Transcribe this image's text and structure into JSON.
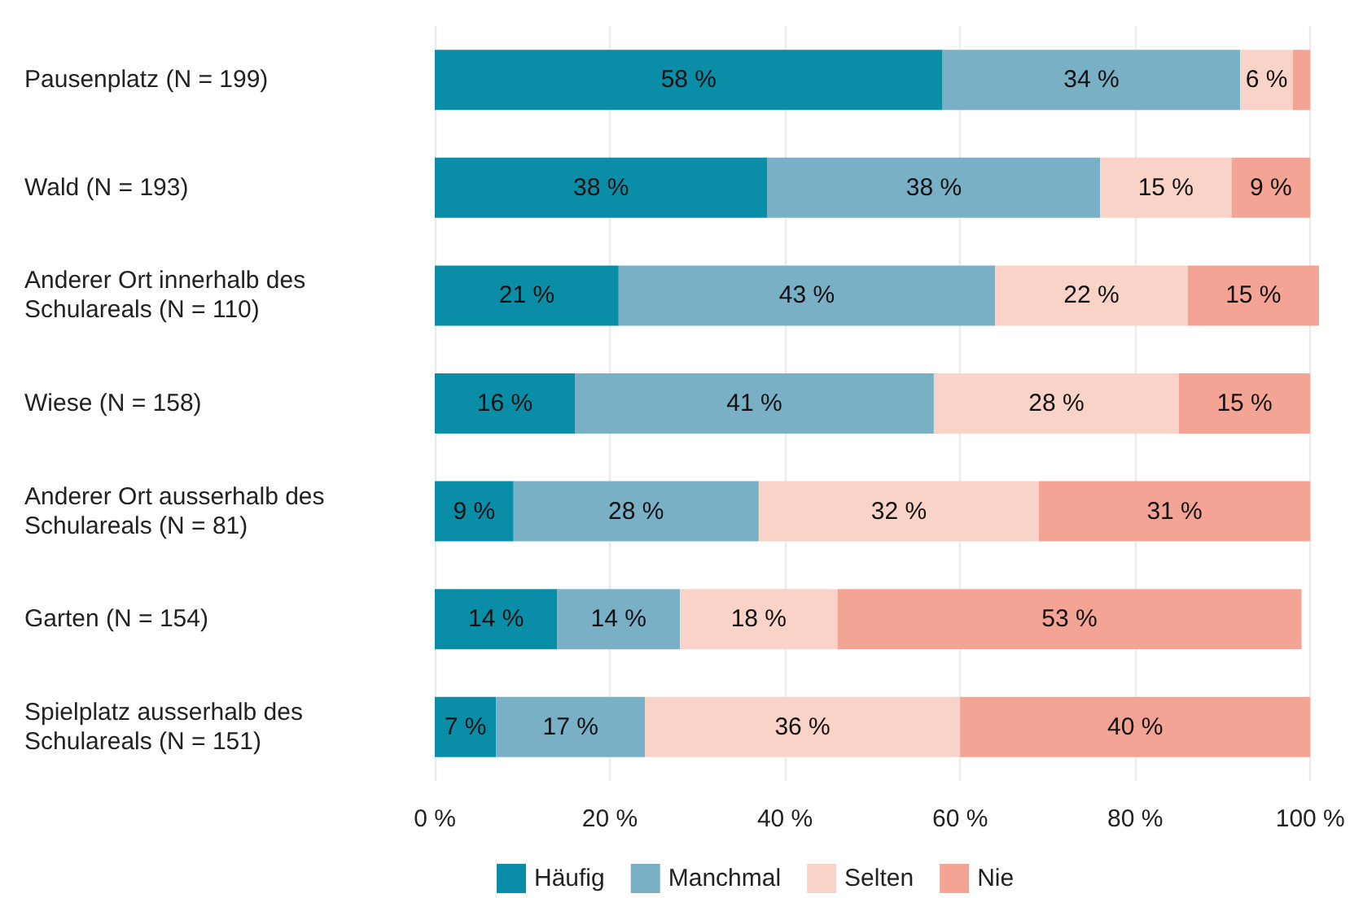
{
  "chart_data": {
    "type": "bar",
    "orientation": "horizontal",
    "stacked": true,
    "categories": [
      "Pausenplatz (N = 199)",
      "Wald (N = 193)",
      "Anderer Ort innerhalb des Schulareals (N = 110)",
      "Wiese (N = 158)",
      "Anderer Ort ausserhalb des Schulareals (N = 81)",
      "Garten (N = 154)",
      "Spielplatz ausserhalb des Schulareals (N = 151)"
    ],
    "series": [
      {
        "name": "Häufig",
        "color": "#0a8ea8",
        "values": [
          58,
          38,
          21,
          16,
          9,
          14,
          7
        ],
        "value_labels": [
          "58 %",
          "38 %",
          "21 %",
          "16 %",
          "9 %",
          "14 %",
          "7 %"
        ]
      },
      {
        "name": "Manchmal",
        "color": "#79b0c6",
        "values": [
          34,
          38,
          43,
          41,
          28,
          14,
          17
        ],
        "value_labels": [
          "34 %",
          "38 %",
          "43 %",
          "41 %",
          "28 %",
          "14 %",
          "17 %"
        ]
      },
      {
        "name": "Selten",
        "color": "#f9d3c8",
        "values": [
          6,
          15,
          22,
          28,
          32,
          18,
          36
        ],
        "value_labels": [
          "6 %",
          "15 %",
          "22 %",
          "28 %",
          "32 %",
          "18 %",
          "36 %"
        ]
      },
      {
        "name": "Nie",
        "color": "#f4a494",
        "values": [
          2,
          9,
          15,
          15,
          31,
          53,
          40
        ],
        "value_labels": [
          null,
          "9 %",
          "15 %",
          "15 %",
          "31 %",
          "53 %",
          "40 %"
        ]
      }
    ],
    "xlim": [
      0,
      101
    ],
    "xticks": [
      {
        "value": 0,
        "label": "0 %"
      },
      {
        "value": 20,
        "label": "20 %"
      },
      {
        "value": 40,
        "label": "40 %"
      },
      {
        "value": 60,
        "label": "60 %"
      },
      {
        "value": 80,
        "label": "80 %"
      },
      {
        "value": 100,
        "label": "100 %"
      }
    ],
    "grid": "x",
    "legend": "bottom"
  }
}
